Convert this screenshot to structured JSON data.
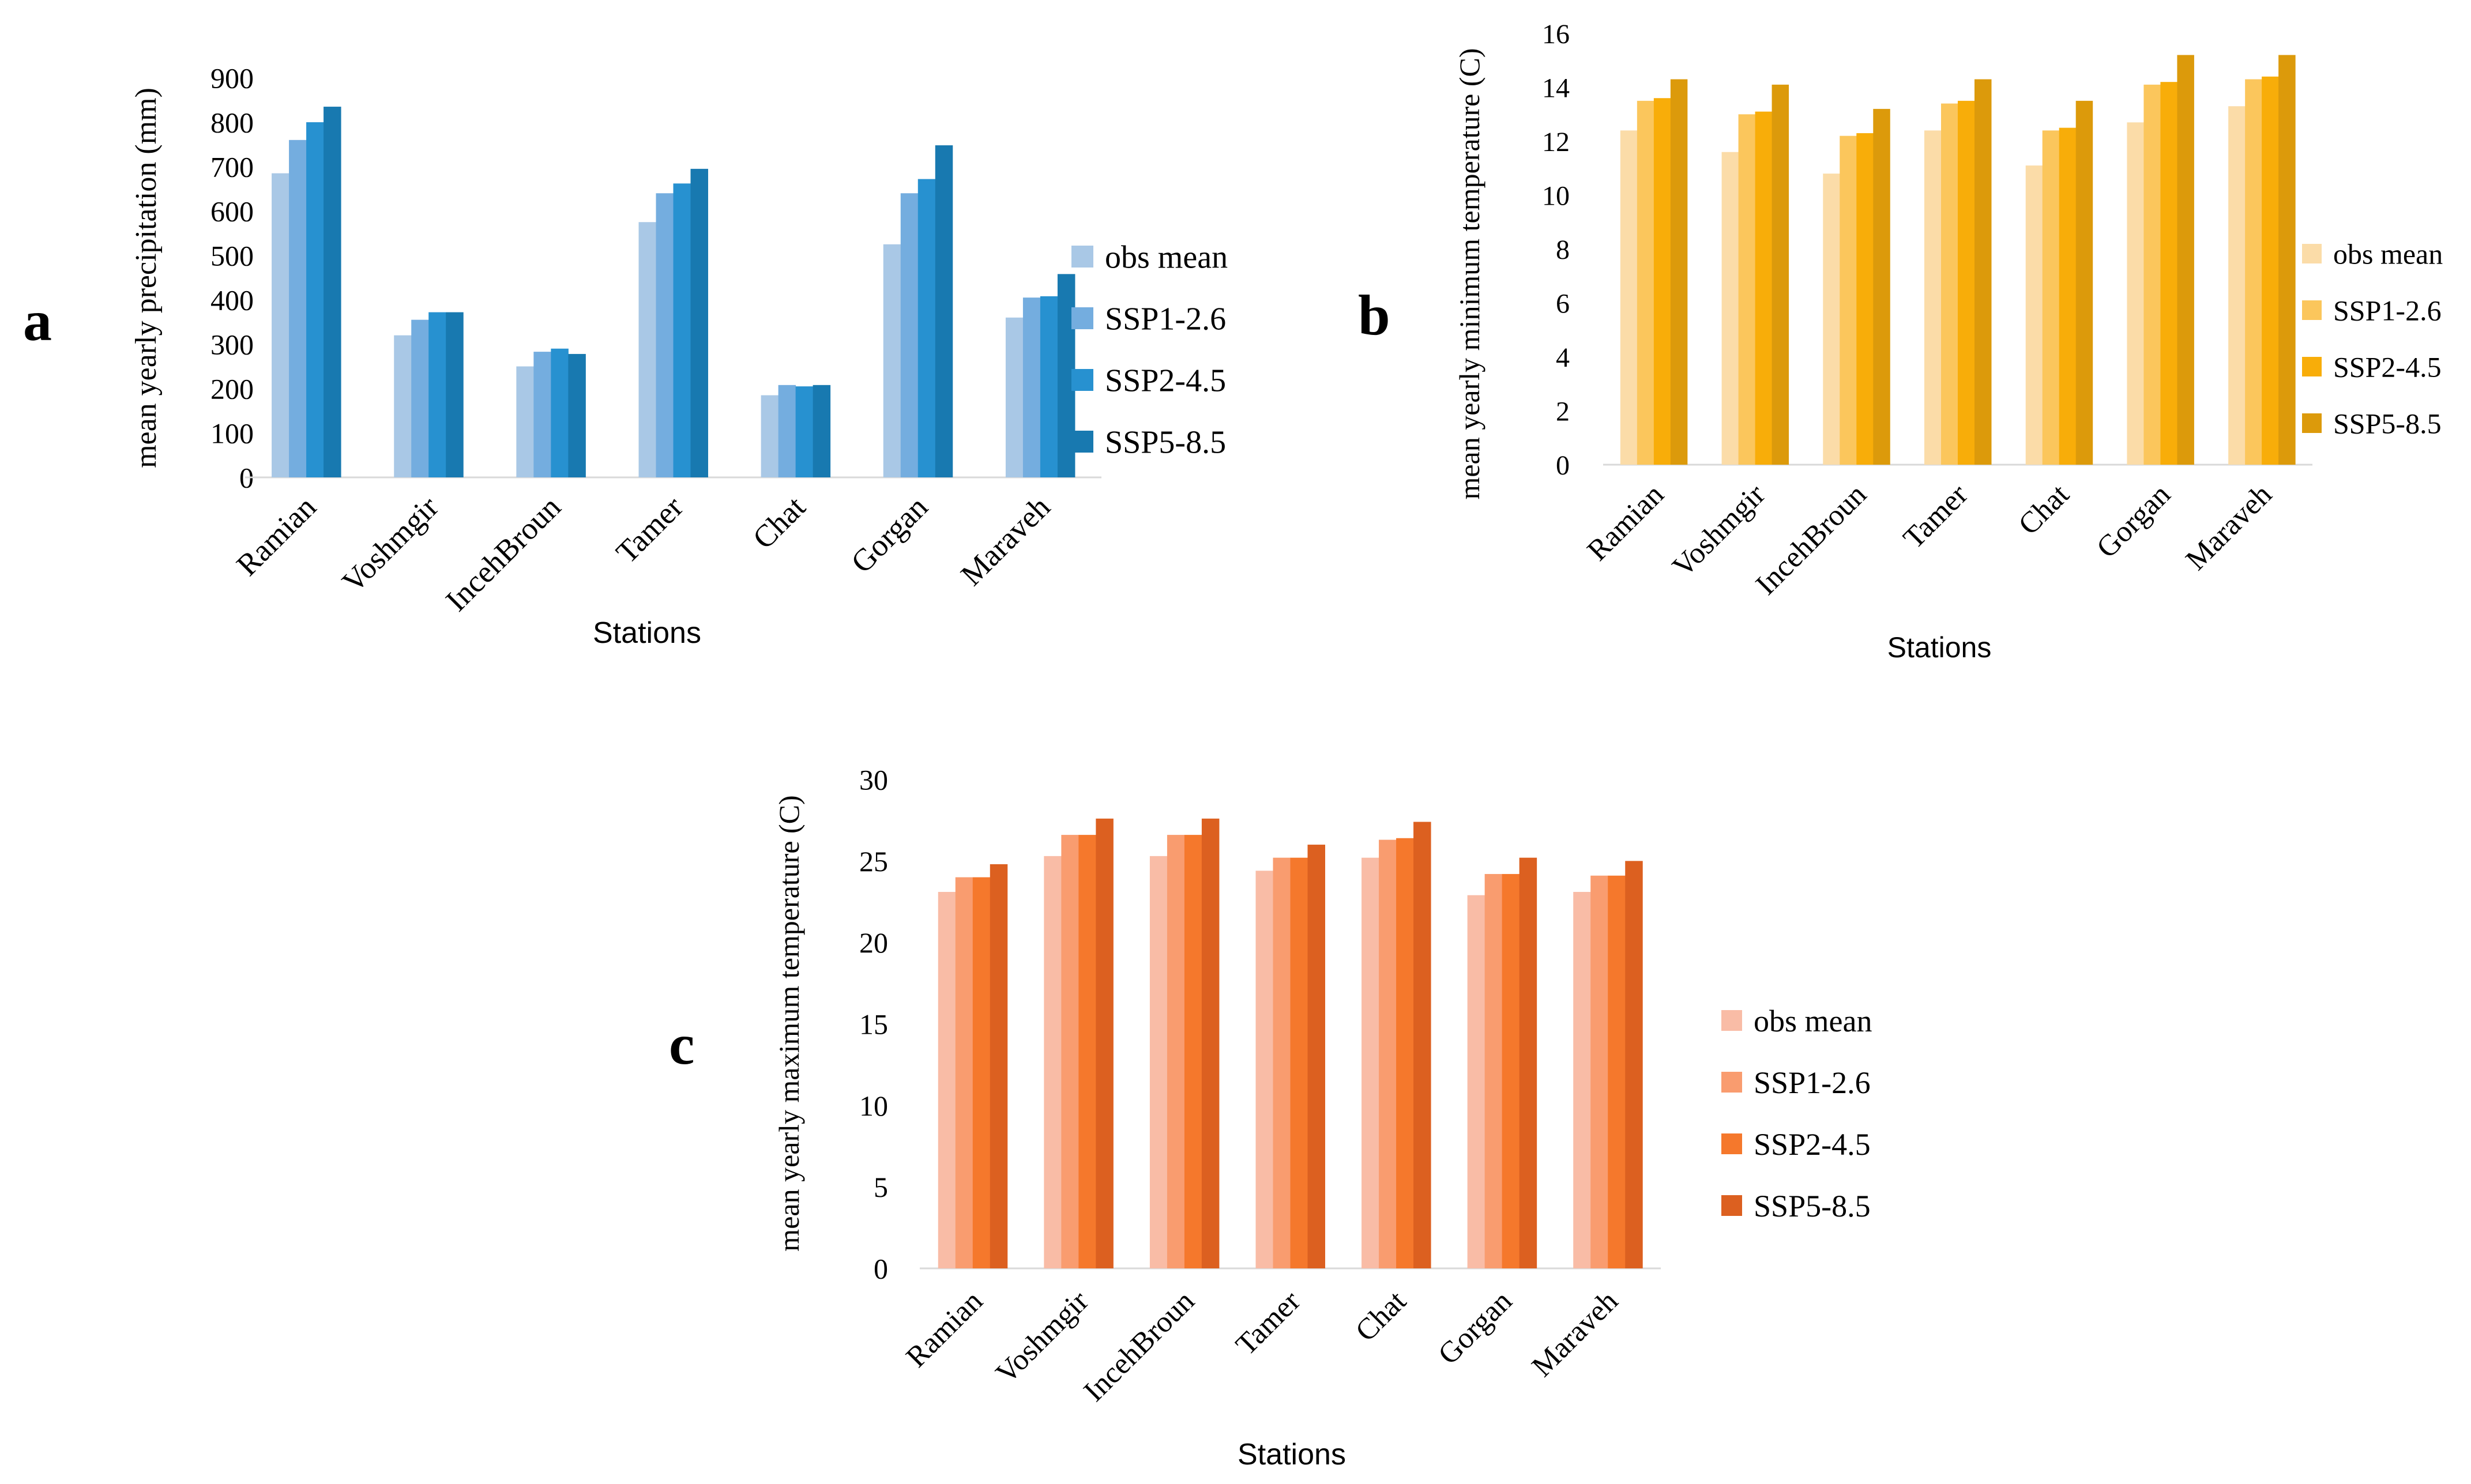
{
  "figure": {
    "panels": [
      "a",
      "b",
      "c"
    ]
  },
  "colors": {
    "precip": [
      "#a9c8e6",
      "#74addf",
      "#2791d0",
      "#1879b0"
    ],
    "tmin": [
      "#fbdca8",
      "#fbc65c",
      "#f8ad09",
      "#dc9a0b"
    ],
    "tmax": [
      "#f9bca6",
      "#f99c6f",
      "#f5782c",
      "#dc6020"
    ],
    "axis": "#d9d9d9",
    "text": "#000000"
  },
  "chart_data": [
    {
      "id": "a",
      "type": "bar",
      "panel_label": "a",
      "title": "",
      "xlabel": "Stations",
      "ylabel": "mean yearly precipitation (mm)",
      "categories": [
        "Ramian",
        "Voshmgir",
        "IncehBroun",
        "Tamer",
        "Chat",
        "Gorgan",
        "Maraveh"
      ],
      "yticks": [
        "0",
        "100",
        "200",
        "300",
        "400",
        "500",
        "600",
        "700",
        "800",
        "900"
      ],
      "ylim": [
        0,
        900
      ],
      "grid": false,
      "legend_position": "right",
      "series": [
        {
          "name": "obs mean",
          "values": [
            685,
            320,
            250,
            575,
            185,
            525,
            360
          ]
        },
        {
          "name": "SSP1-2.6",
          "values": [
            760,
            355,
            283,
            640,
            208,
            640,
            405
          ]
        },
        {
          "name": "SSP2-4.5",
          "values": [
            800,
            372,
            290,
            662,
            205,
            672,
            408
          ]
        },
        {
          "name": "SSP5-8.5",
          "values": [
            835,
            372,
            278,
            695,
            208,
            748,
            458
          ]
        }
      ]
    },
    {
      "id": "b",
      "type": "bar",
      "panel_label": "b",
      "title": "",
      "xlabel": "Stations",
      "ylabel": "mean yearly minimum temperature (C)",
      "categories": [
        "Ramian",
        "Voshmgir",
        "IncehBroun",
        "Tamer",
        "Chat",
        "Gorgan",
        "Maraveh"
      ],
      "yticks": [
        "0",
        "2",
        "4",
        "6",
        "8",
        "10",
        "12",
        "14",
        "16"
      ],
      "ylim": [
        0,
        16
      ],
      "grid": false,
      "legend_position": "right",
      "series": [
        {
          "name": "obs mean",
          "values": [
            12.4,
            11.6,
            10.8,
            12.4,
            11.1,
            12.7,
            13.3
          ]
        },
        {
          "name": "SSP1-2.6",
          "values": [
            13.5,
            13.0,
            12.2,
            13.4,
            12.4,
            14.1,
            14.3
          ]
        },
        {
          "name": "SSP2-4.5",
          "values": [
            13.6,
            13.1,
            12.3,
            13.5,
            12.5,
            14.2,
            14.4
          ]
        },
        {
          "name": "SSP5-8.5",
          "values": [
            14.3,
            14.1,
            13.2,
            14.3,
            13.5,
            15.2,
            15.2
          ]
        }
      ]
    },
    {
      "id": "c",
      "type": "bar",
      "panel_label": "c",
      "title": "",
      "xlabel": "Stations",
      "ylabel": "mean yearly maximum temperature (C)",
      "categories": [
        "Ramian",
        "Voshmgir",
        "IncehBroun",
        "Tamer",
        "Chat",
        "Gorgan",
        "Maraveh"
      ],
      "yticks": [
        "0",
        "5",
        "10",
        "15",
        "20",
        "25",
        "30"
      ],
      "ylim": [
        0,
        30
      ],
      "grid": false,
      "legend_position": "right",
      "series": [
        {
          "name": "obs mean",
          "values": [
            23.1,
            25.3,
            25.3,
            24.4,
            25.2,
            22.9,
            23.1
          ]
        },
        {
          "name": "SSP1-2.6",
          "values": [
            24.0,
            26.6,
            26.6,
            25.2,
            26.3,
            24.2,
            24.1
          ]
        },
        {
          "name": "SSP2-4.5",
          "values": [
            24.0,
            26.6,
            26.6,
            25.2,
            26.4,
            24.2,
            24.1
          ]
        },
        {
          "name": "SSP5-8.5",
          "values": [
            24.8,
            27.6,
            27.6,
            26.0,
            27.4,
            25.2,
            25.0
          ]
        }
      ]
    }
  ]
}
